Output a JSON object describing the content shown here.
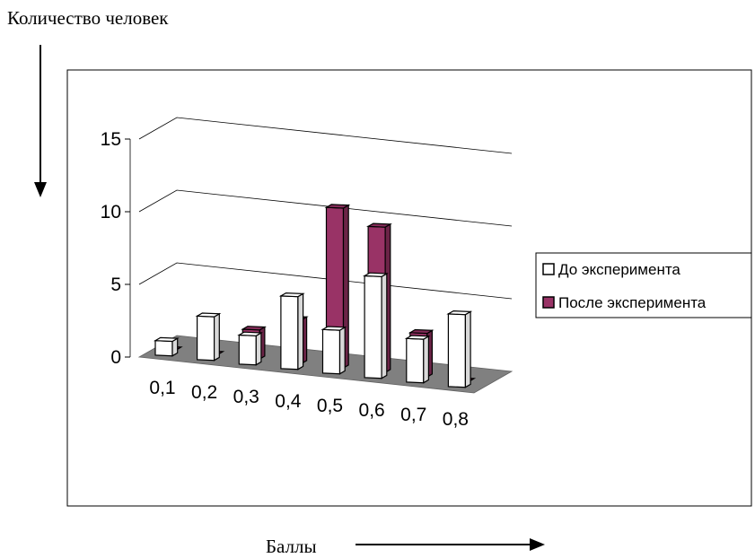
{
  "outer_labels": {
    "y_caption": "Количество человек",
    "x_caption": "Баллы"
  },
  "chart_data": {
    "type": "bar",
    "categories": [
      "0,1",
      "0,2",
      "0,3",
      "0,4",
      "0,5",
      "0,6",
      "0,7",
      "0,8"
    ],
    "series": [
      {
        "name": "До эксперимента",
        "values": [
          1,
          3,
          2,
          5,
          3,
          7,
          3,
          5
        ],
        "color": "#ffffff"
      },
      {
        "name": "После эксперимента",
        "values": [
          0,
          0,
          2,
          3,
          11,
          10,
          3,
          0
        ],
        "color": "#993366"
      }
    ],
    "title": "",
    "xlabel": "",
    "ylabel": "",
    "ylim": [
      0,
      15
    ],
    "yticks": [
      "0",
      "5",
      "10",
      "15"
    ],
    "legend_position": "right",
    "grid": true,
    "projection": "3d"
  }
}
